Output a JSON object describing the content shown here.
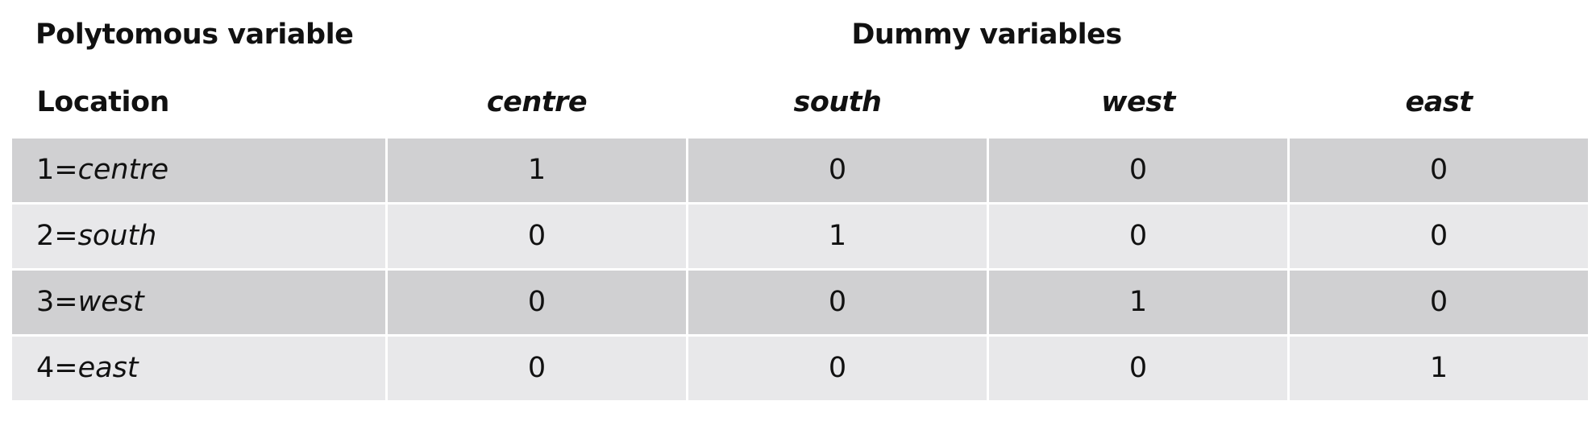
{
  "header": {
    "left_title": "Polytomous variable",
    "center_title": "Dummy variables"
  },
  "table": {
    "first_column_header": "Location",
    "dummy_headers": [
      "centre",
      "south",
      "west",
      "east"
    ],
    "rows": [
      {
        "code": "1=",
        "name": "centre",
        "values": [
          "1",
          "0",
          "0",
          "0"
        ]
      },
      {
        "code": "2=",
        "name": "south",
        "values": [
          "0",
          "1",
          "0",
          "0"
        ]
      },
      {
        "code": "3=",
        "name": "west",
        "values": [
          "0",
          "0",
          "1",
          "0"
        ]
      },
      {
        "code": "4=",
        "name": "east",
        "values": [
          "0",
          "0",
          "0",
          "1"
        ]
      }
    ]
  },
  "colors": {
    "row_dark": "#d0d0d2",
    "row_light": "#e8e8ea",
    "text": "#111111"
  }
}
